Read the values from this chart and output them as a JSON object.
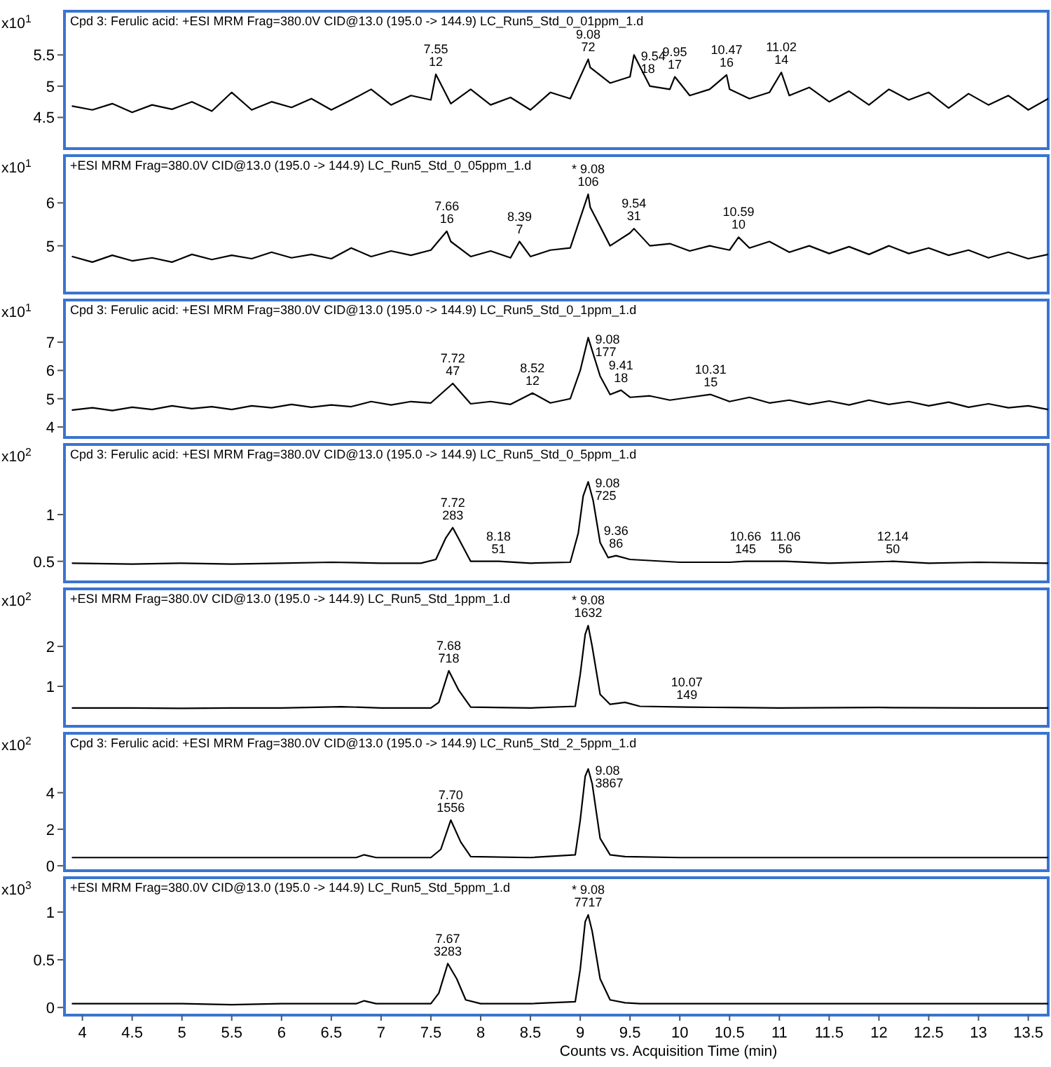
{
  "chart_data": [
    {
      "type": "line",
      "title": "Cpd 3: Ferulic acid: +ESI MRM Frag=380.0V CID@13.0 (195.0 -> 144.9) LC_Run5_Std_0_01ppm_1.d",
      "ylabel": "x10$^{1}$",
      "xlim": [
        3.82,
        13.7
      ],
      "ylim": [
        4.0,
        6.2
      ],
      "yticks": [
        4.5,
        5,
        5.5
      ],
      "tick_labels": "y",
      "x": [
        3.9,
        4.1,
        4.3,
        4.5,
        4.7,
        4.9,
        5.1,
        5.3,
        5.5,
        5.7,
        5.9,
        6.1,
        6.3,
        6.5,
        6.7,
        6.9,
        7.1,
        7.3,
        7.5,
        7.55,
        7.7,
        7.9,
        8.1,
        8.3,
        8.5,
        8.7,
        8.9,
        9.08,
        9.1,
        9.3,
        9.5,
        9.54,
        9.7,
        9.9,
        9.95,
        10.1,
        10.3,
        10.47,
        10.5,
        10.7,
        10.9,
        11.02,
        11.1,
        11.3,
        11.5,
        11.7,
        11.9,
        12.1,
        12.3,
        12.5,
        12.7,
        12.9,
        13.1,
        13.3,
        13.5,
        13.7
      ],
      "series": [
        {
          "color": "#000000",
          "values": [
            4.68,
            4.62,
            4.72,
            4.58,
            4.7,
            4.63,
            4.75,
            4.6,
            4.9,
            4.62,
            4.75,
            4.66,
            4.8,
            4.62,
            4.78,
            4.95,
            4.7,
            4.85,
            4.78,
            5.19,
            4.72,
            4.95,
            4.7,
            4.82,
            4.62,
            4.9,
            4.8,
            5.43,
            5.3,
            5.05,
            5.15,
            5.5,
            5.0,
            4.95,
            5.15,
            4.85,
            4.95,
            5.18,
            4.95,
            4.8,
            4.9,
            5.22,
            4.85,
            4.98,
            4.75,
            4.92,
            4.7,
            4.95,
            4.78,
            4.9,
            4.65,
            4.88,
            4.7,
            4.85,
            4.62,
            4.8
          ]
        }
      ],
      "annotations": [
        {
          "text": "7.55\n12",
          "x": 7.55,
          "y": 5.19
        },
        {
          "text": "9.08\n72",
          "x": 9.08,
          "y": 5.43
        },
        {
          "text": "9.54\n18",
          "x": 9.54,
          "y": 5.5
        },
        {
          "text": "9.95\n17",
          "x": 9.95,
          "y": 5.15
        },
        {
          "text": "10.47\n16",
          "x": 10.47,
          "y": 5.18
        },
        {
          "text": "11.02\n14",
          "x": 11.02,
          "y": 5.22
        }
      ]
    },
    {
      "type": "line",
      "title": "+ESI MRM Frag=380.0V CID@13.0 (195.0 -> 144.9) LC_Run5_Std_0_05ppm_1.d",
      "ylabel": "x10$^{1}$",
      "xlim": [
        3.82,
        13.7
      ],
      "ylim": [
        3.9,
        7.1
      ],
      "yticks": [
        5,
        6
      ],
      "tick_labels": "y",
      "x": [
        3.9,
        4.1,
        4.3,
        4.5,
        4.7,
        4.9,
        5.1,
        5.3,
        5.5,
        5.7,
        5.9,
        6.1,
        6.3,
        6.5,
        6.7,
        6.9,
        7.1,
        7.3,
        7.5,
        7.66,
        7.7,
        7.9,
        8.1,
        8.3,
        8.39,
        8.5,
        8.7,
        8.9,
        9.08,
        9.1,
        9.3,
        9.5,
        9.54,
        9.7,
        9.9,
        10.1,
        10.3,
        10.5,
        10.59,
        10.7,
        10.9,
        11.1,
        11.3,
        11.5,
        11.7,
        11.9,
        12.1,
        12.3,
        12.5,
        12.7,
        12.9,
        13.1,
        13.3,
        13.5,
        13.7
      ],
      "series": [
        {
          "color": "#000000",
          "values": [
            4.75,
            4.62,
            4.78,
            4.65,
            4.72,
            4.62,
            4.8,
            4.68,
            4.78,
            4.7,
            4.85,
            4.72,
            4.8,
            4.7,
            4.95,
            4.75,
            4.88,
            4.78,
            4.9,
            5.34,
            5.1,
            4.75,
            4.88,
            4.72,
            5.1,
            4.75,
            4.9,
            4.95,
            6.2,
            5.9,
            5.0,
            5.3,
            5.4,
            5.0,
            5.05,
            4.88,
            5.0,
            4.9,
            5.2,
            4.95,
            5.1,
            4.85,
            5.0,
            4.82,
            4.98,
            4.8,
            5.0,
            4.82,
            4.95,
            4.78,
            4.9,
            4.72,
            4.85,
            4.7,
            4.8
          ]
        }
      ],
      "annotations": [
        {
          "text": "7.66\n16",
          "x": 7.66,
          "y": 5.34
        },
        {
          "text": "8.39\n7",
          "x": 8.39,
          "y": 5.1
        },
        {
          "text": "* 9.08\n106",
          "x": 9.08,
          "y": 6.2
        },
        {
          "text": "9.54\n31",
          "x": 9.54,
          "y": 5.4
        },
        {
          "text": "10.59\n10",
          "x": 10.59,
          "y": 5.2
        }
      ]
    },
    {
      "type": "line",
      "title": "Cpd 3: Ferulic acid: +ESI MRM Frag=380.0V CID@13.0 (195.0 -> 144.9) LC_Run5_Std_0_1ppm_1.d",
      "ylabel": "x10$^{1}$",
      "xlim": [
        3.82,
        13.7
      ],
      "ylim": [
        3.63,
        8.49
      ],
      "yticks": [
        4,
        5,
        6,
        7
      ],
      "tick_labels": "y",
      "x": [
        3.9,
        4.1,
        4.3,
        4.5,
        4.7,
        4.9,
        5.1,
        5.3,
        5.5,
        5.7,
        5.9,
        6.1,
        6.3,
        6.5,
        6.7,
        6.9,
        7.1,
        7.3,
        7.5,
        7.72,
        7.9,
        8.1,
        8.3,
        8.52,
        8.7,
        8.9,
        9.0,
        9.08,
        9.2,
        9.3,
        9.41,
        9.5,
        9.7,
        9.9,
        10.1,
        10.31,
        10.5,
        10.7,
        10.9,
        11.1,
        11.3,
        11.5,
        11.7,
        11.9,
        12.1,
        12.3,
        12.5,
        12.7,
        12.9,
        13.1,
        13.3,
        13.5,
        13.7
      ],
      "series": [
        {
          "color": "#000000",
          "values": [
            4.6,
            4.68,
            4.58,
            4.7,
            4.62,
            4.75,
            4.65,
            4.72,
            4.62,
            4.75,
            4.68,
            4.8,
            4.7,
            4.78,
            4.72,
            4.9,
            4.78,
            4.9,
            4.85,
            5.54,
            4.82,
            4.9,
            4.8,
            5.2,
            4.85,
            5.0,
            6.0,
            7.16,
            5.8,
            5.15,
            5.3,
            5.05,
            5.1,
            4.95,
            5.05,
            5.15,
            4.9,
            5.05,
            4.85,
            4.95,
            4.8,
            4.92,
            4.78,
            4.95,
            4.8,
            4.9,
            4.75,
            4.88,
            4.7,
            4.82,
            4.68,
            4.75,
            4.62
          ]
        }
      ],
      "annotations": [
        {
          "text": "7.72\n47",
          "x": 7.72,
          "y": 5.54
        },
        {
          "text": "8.52\n12",
          "x": 8.52,
          "y": 5.2
        },
        {
          "text": "9.08\n177",
          "x": 9.08,
          "y": 7.16
        },
        {
          "text": "9.41\n18",
          "x": 9.41,
          "y": 5.3
        },
        {
          "text": "10.31\n15",
          "x": 10.31,
          "y": 5.15
        }
      ]
    },
    {
      "type": "line",
      "title": "Cpd 3: Ferulic acid: +ESI MRM Frag=380.0V CID@13.0 (195.0 -> 144.9) LC_Run5_Std_0_5ppm_1.d",
      "ylabel": "x10$^{2}$",
      "xlim": [
        3.82,
        13.7
      ],
      "ylim": [
        0.28,
        1.75
      ],
      "yticks": [
        0.5,
        1
      ],
      "tick_labels": "y",
      "x": [
        3.9,
        4.5,
        5.0,
        5.5,
        6.0,
        6.5,
        7.0,
        7.4,
        7.55,
        7.65,
        7.72,
        7.8,
        7.9,
        8.18,
        8.5,
        8.9,
        8.98,
        9.03,
        9.08,
        9.13,
        9.2,
        9.28,
        9.36,
        9.5,
        10.0,
        10.5,
        10.66,
        11.06,
        11.5,
        12.14,
        12.5,
        13.0,
        13.7
      ],
      "series": [
        {
          "color": "#000000",
          "values": [
            0.48,
            0.47,
            0.48,
            0.47,
            0.48,
            0.49,
            0.48,
            0.48,
            0.52,
            0.75,
            0.86,
            0.7,
            0.5,
            0.5,
            0.48,
            0.49,
            0.8,
            1.2,
            1.35,
            1.15,
            0.7,
            0.54,
            0.56,
            0.52,
            0.49,
            0.49,
            0.5,
            0.5,
            0.48,
            0.5,
            0.48,
            0.49,
            0.48
          ]
        }
      ],
      "annotations": [
        {
          "text": "7.72\n283",
          "x": 7.72,
          "y": 0.86
        },
        {
          "text": "8.18\n51",
          "x": 8.18,
          "y": 0.5
        },
        {
          "text": "9.08\n725",
          "x": 9.08,
          "y": 1.35
        },
        {
          "text": "9.36\n86",
          "x": 9.36,
          "y": 0.56
        },
        {
          "text": "10.66\n145",
          "x": 10.66,
          "y": 0.5
        },
        {
          "text": "11.06\n56",
          "x": 11.06,
          "y": 0.5
        },
        {
          "text": "12.14\n50",
          "x": 12.14,
          "y": 0.5
        }
      ]
    },
    {
      "type": "line",
      "title": "+ESI MRM Frag=380.0V CID@13.0 (195.0 -> 144.9) LC_Run5_Std_1ppm_1.d",
      "ylabel": "x10$^{2}$",
      "xlim": [
        3.82,
        13.7
      ],
      "ylim": [
        0,
        3.44
      ],
      "yticks": [
        1,
        2
      ],
      "tick_labels": "y",
      "x": [
        3.9,
        4.5,
        5.0,
        5.5,
        6.0,
        6.6,
        7.0,
        7.5,
        7.58,
        7.68,
        7.78,
        7.9,
        8.5,
        8.95,
        9.0,
        9.05,
        9.08,
        9.12,
        9.2,
        9.3,
        9.45,
        9.6,
        10.07,
        10.5,
        11.0,
        12.0,
        13.0,
        13.7
      ],
      "series": [
        {
          "color": "#000000",
          "values": [
            0.46,
            0.46,
            0.45,
            0.46,
            0.46,
            0.49,
            0.46,
            0.46,
            0.6,
            1.39,
            0.9,
            0.48,
            0.46,
            0.5,
            1.3,
            2.3,
            2.52,
            2.0,
            0.8,
            0.55,
            0.6,
            0.5,
            0.48,
            0.47,
            0.46,
            0.47,
            0.46,
            0.46
          ]
        }
      ],
      "annotations": [
        {
          "text": "7.68\n718",
          "x": 7.68,
          "y": 1.39
        },
        {
          "text": "* 9.08\n1632",
          "x": 9.08,
          "y": 2.52
        },
        {
          "text": "10.07\n149",
          "x": 10.07,
          "y": 0.48
        }
      ]
    },
    {
      "type": "line",
      "title": "Cpd 3: Ferulic acid: +ESI MRM Frag=380.0V CID@13.0 (195.0 -> 144.9) LC_Run5_Std_2_5ppm_1.d",
      "ylabel": "x10$^{2}$",
      "xlim": [
        3.82,
        13.7
      ],
      "ylim": [
        -0.27,
        7.25
      ],
      "yticks": [
        0,
        2,
        4
      ],
      "tick_labels": "y",
      "x": [
        3.9,
        5.0,
        6.0,
        6.75,
        6.83,
        6.95,
        7.5,
        7.6,
        7.7,
        7.8,
        7.9,
        8.5,
        8.95,
        9.0,
        9.05,
        9.08,
        9.12,
        9.2,
        9.3,
        9.45,
        10.0,
        11.0,
        12.0,
        13.0,
        13.7
      ],
      "series": [
        {
          "color": "#000000",
          "values": [
            0.45,
            0.45,
            0.45,
            0.45,
            0.6,
            0.45,
            0.45,
            0.9,
            2.5,
            1.3,
            0.5,
            0.45,
            0.6,
            2.5,
            4.9,
            5.3,
            4.5,
            1.5,
            0.6,
            0.5,
            0.45,
            0.45,
            0.45,
            0.45,
            0.45
          ]
        }
      ],
      "annotations": [
        {
          "text": "7.70\n1556",
          "x": 7.7,
          "y": 2.5
        },
        {
          "text": "9.08\n3867",
          "x": 9.08,
          "y": 5.3
        }
      ]
    },
    {
      "type": "line",
      "title": "+ESI MRM Frag=380.0V CID@13.0 (195.0 -> 144.9) LC_Run5_Std_5ppm_1.d",
      "ylabel": "x10$^{3}$",
      "xlabel": "Counts vs. Acquisition Time (min)",
      "xlim": [
        3.82,
        13.7
      ],
      "ylim": [
        -0.08,
        1.36
      ],
      "yticks": [
        0,
        0.5,
        1
      ],
      "xticks": [
        4,
        4.5,
        5,
        5.5,
        6,
        6.5,
        7,
        7.5,
        8,
        8.5,
        9,
        9.5,
        10,
        10.5,
        11,
        11.5,
        12,
        12.5,
        13,
        13.5
      ],
      "x": [
        3.9,
        4.5,
        5.0,
        5.5,
        6.0,
        6.5,
        6.75,
        6.83,
        6.95,
        7.5,
        7.58,
        7.67,
        7.76,
        7.85,
        8.0,
        8.5,
        8.95,
        9.0,
        9.05,
        9.08,
        9.12,
        9.2,
        9.3,
        9.45,
        9.6,
        10.5,
        11.5,
        12.5,
        13.7
      ],
      "series": [
        {
          "color": "#000000",
          "values": [
            0.04,
            0.04,
            0.04,
            0.03,
            0.04,
            0.04,
            0.04,
            0.07,
            0.04,
            0.04,
            0.15,
            0.46,
            0.3,
            0.08,
            0.04,
            0.04,
            0.06,
            0.4,
            0.9,
            0.97,
            0.8,
            0.3,
            0.08,
            0.05,
            0.04,
            0.04,
            0.04,
            0.04,
            0.04
          ]
        }
      ],
      "annotations": [
        {
          "text": "7.67\n3283",
          "x": 7.67,
          "y": 0.46
        },
        {
          "text": "* 9.08\n7717",
          "x": 9.08,
          "y": 0.97
        }
      ]
    }
  ]
}
